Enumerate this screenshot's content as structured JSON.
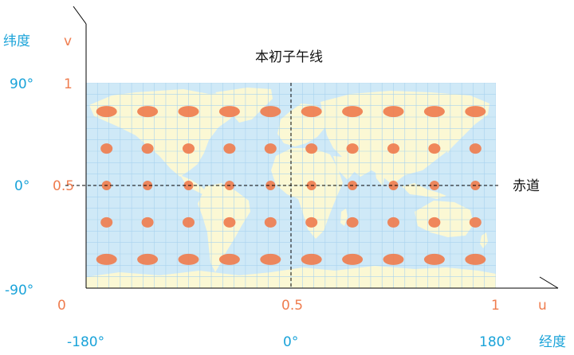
{
  "labels": {
    "lat_axis_name": "纬度",
    "lon_axis_name": "经度",
    "v_axis_name": "v",
    "u_axis_name": "u",
    "prime_meridian": "本初子午线",
    "equator": "赤道"
  },
  "lat_ticks": [
    "90°",
    "0°",
    "-90°"
  ],
  "v_ticks": [
    "1",
    "0.5"
  ],
  "u_ticks": [
    "0",
    "0.5",
    "1"
  ],
  "lon_ticks": [
    "-180°",
    "0°",
    "180°"
  ],
  "map": {
    "ocean_color": "#cfe9f7",
    "land_color": "#fbf8d4",
    "grid_color": "#a9d3ee",
    "ellipse_color": "#ef7d4f"
  },
  "tissot": {
    "columns_u": [
      0.05,
      0.15,
      0.25,
      0.35,
      0.45,
      0.55,
      0.65,
      0.75,
      0.85,
      0.95
    ],
    "rows": [
      {
        "v": 0.86,
        "rx": 13,
        "ry": 7
      },
      {
        "v": 0.68,
        "rx": 7.5,
        "ry": 6.5
      },
      {
        "v": 0.5,
        "rx": 6,
        "ry": 6
      },
      {
        "v": 0.32,
        "rx": 7.5,
        "ry": 6.5
      },
      {
        "v": 0.14,
        "rx": 13,
        "ry": 7
      }
    ]
  }
}
